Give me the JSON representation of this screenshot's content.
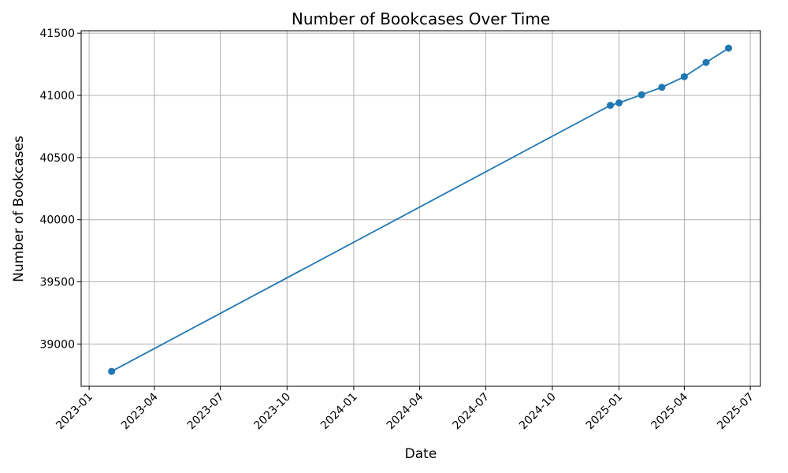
{
  "chart_data": {
    "type": "line",
    "title": "Number of Bookcases Over Time",
    "xlabel": "Date",
    "ylabel": "Number of Bookcases",
    "x_tick_labels": [
      "2023-01",
      "2023-04",
      "2023-07",
      "2023-10",
      "2024-01",
      "2024-04",
      "2024-07",
      "2024-10",
      "2025-01",
      "2025-04",
      "2025-07"
    ],
    "y_ticks": [
      39000,
      39500,
      40000,
      40500,
      41000,
      41500
    ],
    "xlim": [
      "2022-12-21",
      "2025-07-15"
    ],
    "ylim": [
      38660,
      41520
    ],
    "grid": true,
    "series": [
      {
        "color": "#1f77b4",
        "marker": "circle",
        "points": [
          {
            "x": "2023-02-01",
            "y": 38780
          },
          {
            "x": "2024-12-20",
            "y": 40920
          },
          {
            "x": "2025-01-01",
            "y": 40940
          },
          {
            "x": "2025-02-01",
            "y": 41005
          },
          {
            "x": "2025-03-01",
            "y": 41065
          },
          {
            "x": "2025-04-01",
            "y": 41150
          },
          {
            "x": "2025-05-01",
            "y": 41265
          },
          {
            "x": "2025-06-01",
            "y": 41380
          }
        ]
      }
    ]
  }
}
